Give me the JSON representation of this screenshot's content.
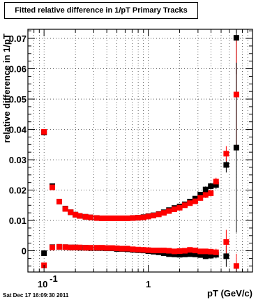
{
  "title": "Fitted relative difference in 1/pT  Primary Tracks",
  "footer": "Sat Dec 17 16:09:30 2011",
  "chart_data": {
    "type": "scatter",
    "xlabel": "pT (GeV/c)",
    "ylabel": "relative difference in 1/pT",
    "xscale": "log",
    "xlim": [
      0.07,
      10
    ],
    "ylim": [
      -0.007,
      0.073
    ],
    "grid": true,
    "x_ticks": [
      {
        "value": 0.1,
        "label": "10",
        "sup": "-1"
      },
      {
        "value": 1,
        "label": "1",
        "sup": ""
      }
    ],
    "y_ticks": [
      {
        "value": 0,
        "label": "0"
      },
      {
        "value": 0.01,
        "label": "0.01"
      },
      {
        "value": 0.02,
        "label": "0.02"
      },
      {
        "value": 0.03,
        "label": "0.03"
      },
      {
        "value": 0.04,
        "label": "0.04"
      },
      {
        "value": 0.05,
        "label": "0.05"
      },
      {
        "value": 0.06,
        "label": "0.06"
      },
      {
        "value": 0.07,
        "label": "0.07"
      }
    ],
    "series": [
      {
        "color": "#000000",
        "role": "sigma",
        "points": [
          [
            0.1,
            0.039,
            0.0005
          ],
          [
            0.12,
            0.0213,
            0.0004
          ],
          [
            0.14,
            0.0162,
            0.0004
          ],
          [
            0.16,
            0.0139,
            0.0003
          ],
          [
            0.18,
            0.0127,
            0.0003
          ],
          [
            0.2,
            0.0119,
            0.0003
          ],
          [
            0.22,
            0.0115,
            0.0003
          ],
          [
            0.25,
            0.0112,
            0.0003
          ],
          [
            0.28,
            0.011,
            0.0003
          ],
          [
            0.32,
            0.0108,
            0.0003
          ],
          [
            0.36,
            0.0107,
            0.0003
          ],
          [
            0.4,
            0.0107,
            0.0003
          ],
          [
            0.45,
            0.0107,
            0.0003
          ],
          [
            0.5,
            0.0107,
            0.0003
          ],
          [
            0.56,
            0.0107,
            0.0003
          ],
          [
            0.63,
            0.0107,
            0.0003
          ],
          [
            0.71,
            0.0108,
            0.0003
          ],
          [
            0.8,
            0.0109,
            0.0003
          ],
          [
            0.9,
            0.0111,
            0.0003
          ],
          [
            1.0,
            0.0114,
            0.0003
          ],
          [
            1.12,
            0.0117,
            0.0004
          ],
          [
            1.26,
            0.0121,
            0.0004
          ],
          [
            1.41,
            0.0127,
            0.0004
          ],
          [
            1.58,
            0.0134,
            0.0004
          ],
          [
            1.78,
            0.0141,
            0.0005
          ],
          [
            2.0,
            0.0146,
            0.0005
          ],
          [
            2.24,
            0.0153,
            0.0006
          ],
          [
            2.51,
            0.0162,
            0.0007
          ],
          [
            2.82,
            0.0172,
            0.0008
          ],
          [
            3.16,
            0.0185,
            0.0009
          ],
          [
            3.55,
            0.0202,
            0.001
          ],
          [
            3.98,
            0.0213,
            0.0011
          ],
          [
            4.47,
            0.0217,
            0.0013
          ],
          [
            5.6,
            0.0283,
            0.0025
          ],
          [
            7.0,
            0.0702,
            0.012
          ]
        ]
      },
      {
        "color": "#ff0000",
        "role": "sigma",
        "points": [
          [
            0.1,
            0.0392,
            0.0005
          ],
          [
            0.12,
            0.0209,
            0.0004
          ],
          [
            0.14,
            0.0162,
            0.0004
          ],
          [
            0.16,
            0.0138,
            0.0003
          ],
          [
            0.18,
            0.0127,
            0.0003
          ],
          [
            0.2,
            0.0119,
            0.0003
          ],
          [
            0.22,
            0.0115,
            0.0003
          ],
          [
            0.25,
            0.0112,
            0.0003
          ],
          [
            0.28,
            0.011,
            0.0003
          ],
          [
            0.32,
            0.0108,
            0.0003
          ],
          [
            0.36,
            0.0107,
            0.0003
          ],
          [
            0.4,
            0.0107,
            0.0003
          ],
          [
            0.45,
            0.0107,
            0.0003
          ],
          [
            0.5,
            0.0107,
            0.0003
          ],
          [
            0.56,
            0.0107,
            0.0003
          ],
          [
            0.63,
            0.0107,
            0.0003
          ],
          [
            0.71,
            0.0108,
            0.0003
          ],
          [
            0.8,
            0.0109,
            0.0003
          ],
          [
            0.9,
            0.011,
            0.0003
          ],
          [
            1.0,
            0.0113,
            0.0003
          ],
          [
            1.12,
            0.0116,
            0.0004
          ],
          [
            1.26,
            0.012,
            0.0004
          ],
          [
            1.41,
            0.0125,
            0.0004
          ],
          [
            1.58,
            0.0131,
            0.0004
          ],
          [
            1.78,
            0.0137,
            0.0005
          ],
          [
            2.0,
            0.0142,
            0.0005
          ],
          [
            2.24,
            0.015,
            0.0006
          ],
          [
            2.51,
            0.0157,
            0.0007
          ],
          [
            2.82,
            0.0163,
            0.0008
          ],
          [
            3.16,
            0.0174,
            0.0009
          ],
          [
            3.55,
            0.0184,
            0.001
          ],
          [
            3.98,
            0.019,
            0.0011
          ],
          [
            4.47,
            0.0228,
            0.0013
          ],
          [
            5.6,
            0.032,
            0.0025
          ],
          [
            7.0,
            0.0515,
            0.018
          ]
        ]
      },
      {
        "color": "#000000",
        "role": "mean",
        "points": [
          [
            0.1,
            -0.0008,
            0.0005
          ],
          [
            0.12,
            0.0012,
            0.0004
          ],
          [
            0.14,
            0.0013,
            0.0003
          ],
          [
            0.16,
            0.0012,
            0.0003
          ],
          [
            0.18,
            0.0011,
            0.0003
          ],
          [
            0.2,
            0.0011,
            0.0003
          ],
          [
            0.22,
            0.001,
            0.0003
          ],
          [
            0.25,
            0.001,
            0.0003
          ],
          [
            0.28,
            0.0009,
            0.0003
          ],
          [
            0.32,
            0.0009,
            0.0003
          ],
          [
            0.36,
            0.0009,
            0.0003
          ],
          [
            0.4,
            0.0008,
            0.0003
          ],
          [
            0.45,
            0.0008,
            0.0003
          ],
          [
            0.5,
            0.0006,
            0.0003
          ],
          [
            0.56,
            0.0006,
            0.0003
          ],
          [
            0.63,
            0.0005,
            0.0003
          ],
          [
            0.71,
            0.0003,
            0.0003
          ],
          [
            0.8,
            0.0002,
            0.0003
          ],
          [
            0.9,
            0.0001,
            0.0003
          ],
          [
            1.0,
            -0.0001,
            0.0003
          ],
          [
            1.12,
            -0.0003,
            0.0003
          ],
          [
            1.26,
            -0.0005,
            0.0004
          ],
          [
            1.41,
            -0.0008,
            0.0004
          ],
          [
            1.58,
            -0.0011,
            0.0004
          ],
          [
            1.78,
            -0.0012,
            0.0005
          ],
          [
            2.0,
            -0.0013,
            0.0005
          ],
          [
            2.24,
            -0.0012,
            0.0006
          ],
          [
            2.51,
            -0.0011,
            0.0006
          ],
          [
            2.82,
            -0.0012,
            0.0007
          ],
          [
            3.16,
            -0.0014,
            0.0008
          ],
          [
            3.55,
            -0.0018,
            0.0009
          ],
          [
            3.98,
            -0.0016,
            0.001
          ],
          [
            4.47,
            -0.0013,
            0.0012
          ],
          [
            5.6,
            -0.0018,
            0.0035
          ],
          [
            7.0,
            0.034,
            0.028
          ]
        ]
      },
      {
        "color": "#ff0000",
        "role": "mean",
        "points": [
          [
            0.1,
            -0.0048,
            0.0005
          ],
          [
            0.12,
            0.0011,
            0.0004
          ],
          [
            0.14,
            0.0013,
            0.0003
          ],
          [
            0.16,
            0.0012,
            0.0003
          ],
          [
            0.18,
            0.0011,
            0.0003
          ],
          [
            0.2,
            0.0011,
            0.0003
          ],
          [
            0.22,
            0.0011,
            0.0003
          ],
          [
            0.25,
            0.001,
            0.0003
          ],
          [
            0.28,
            0.001,
            0.0003
          ],
          [
            0.32,
            0.001,
            0.0003
          ],
          [
            0.36,
            0.001,
            0.0003
          ],
          [
            0.4,
            0.0009,
            0.0003
          ],
          [
            0.45,
            0.0009,
            0.0003
          ],
          [
            0.5,
            0.0008,
            0.0003
          ],
          [
            0.56,
            0.0007,
            0.0003
          ],
          [
            0.63,
            0.0007,
            0.0003
          ],
          [
            0.71,
            0.0005,
            0.0003
          ],
          [
            0.8,
            0.0004,
            0.0003
          ],
          [
            0.9,
            0.0003,
            0.0003
          ],
          [
            1.0,
            0.0002,
            0.0003
          ],
          [
            1.12,
            0.0001,
            0.0003
          ],
          [
            1.26,
            0.0001,
            0.0004
          ],
          [
            1.41,
            0.0001,
            0.0004
          ],
          [
            1.58,
            0.0,
            0.0004
          ],
          [
            1.78,
            -0.0002,
            0.0005
          ],
          [
            2.0,
            -0.0001,
            0.0005
          ],
          [
            2.24,
            0.0,
            0.0006
          ],
          [
            2.51,
            0.0003,
            0.0006
          ],
          [
            2.82,
            0.0001,
            0.0007
          ],
          [
            3.16,
            -0.0002,
            0.0008
          ],
          [
            3.55,
            -0.0002,
            0.0009
          ],
          [
            3.98,
            -0.0003,
            0.001
          ],
          [
            4.47,
            -0.0005,
            0.0012
          ],
          [
            5.6,
            0.0029,
            0.004
          ],
          [
            7.0,
            -0.005,
            0.004
          ]
        ]
      }
    ]
  }
}
